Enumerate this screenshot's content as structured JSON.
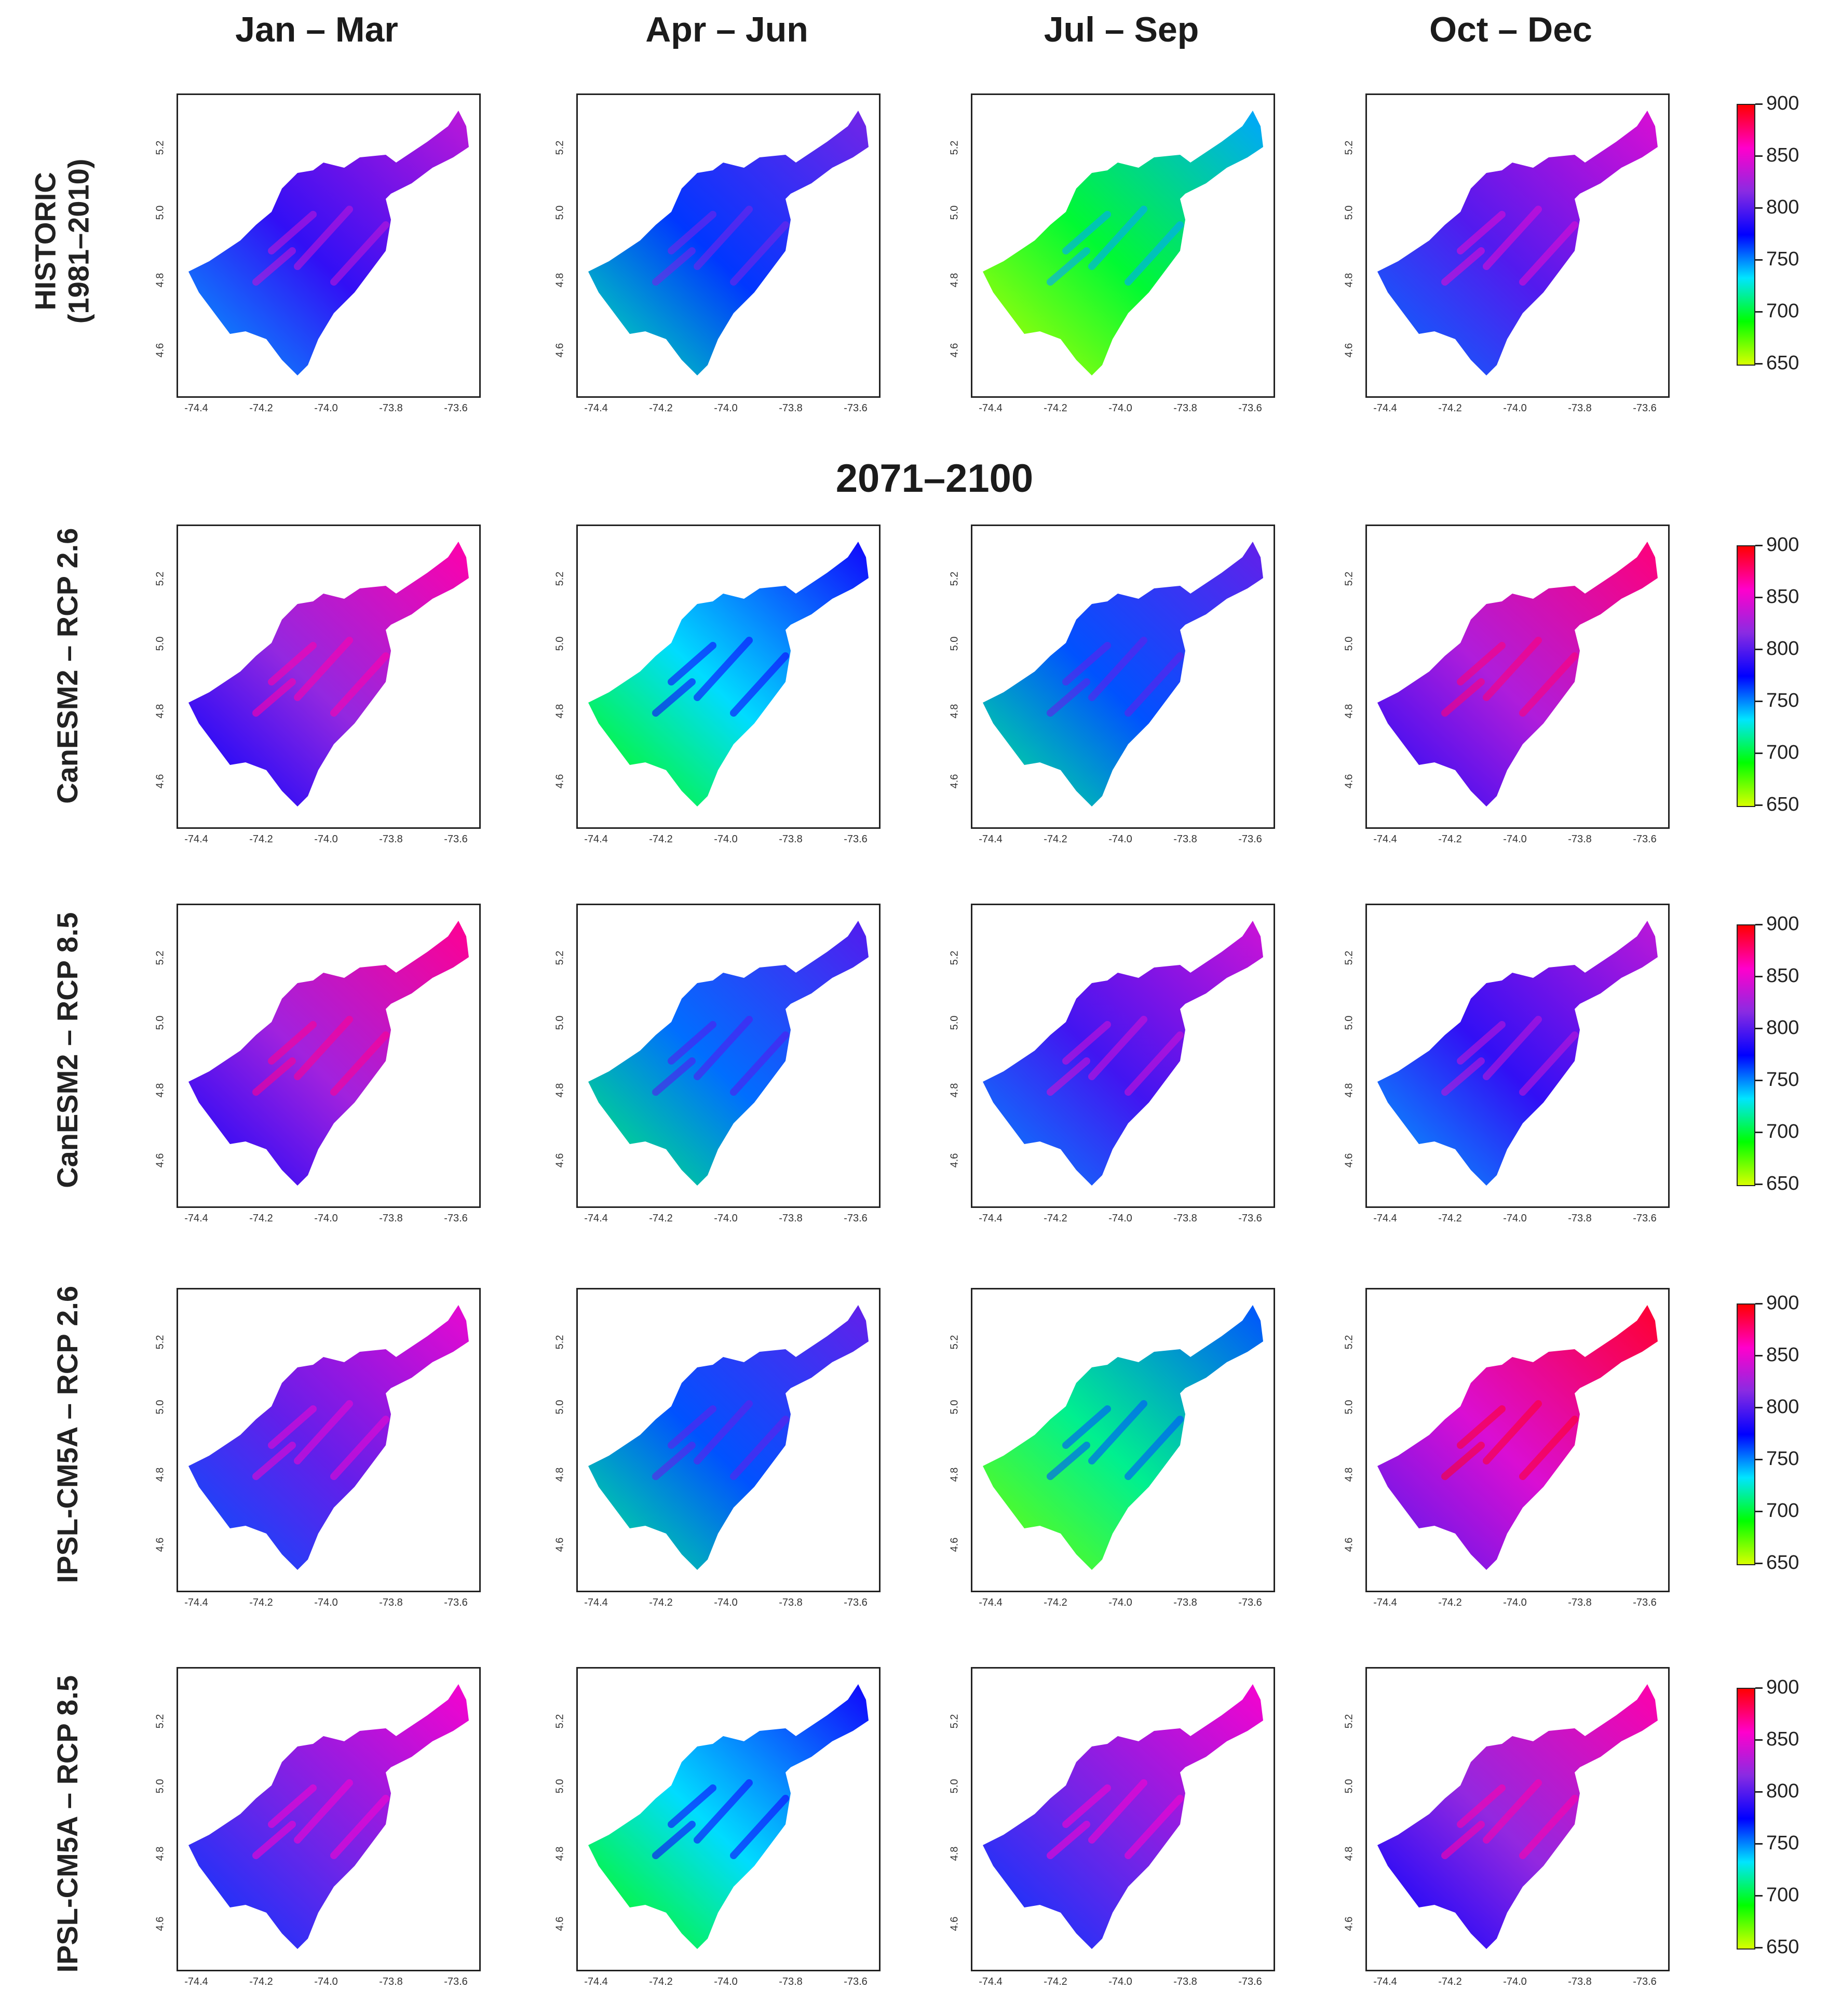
{
  "columns": [
    "Jan – Mar",
    "Apr – Jun",
    "Jul – Sep",
    "Oct – Dec"
  ],
  "period_title": "2071–2100",
  "rows": [
    {
      "label_line1": "HISTORIC",
      "label_line2": "(1981–2010)",
      "values": [
        790,
        765,
        700,
        800
      ]
    },
    {
      "label_line1": "CanESM2 – RCP 2.6",
      "label_line2": "",
      "values": [
        820,
        735,
        760,
        830
      ]
    },
    {
      "label_line1": "CanESM2 – RCP 8.5",
      "label_line2": "",
      "values": [
        825,
        755,
        795,
        790
      ]
    },
    {
      "label_line1": "IPSL-CM5A – RCP 2.6",
      "label_line2": "",
      "values": [
        805,
        760,
        715,
        845
      ]
    },
    {
      "label_line1": "IPSL-CM5A – RCP 8.5",
      "label_line2": "",
      "values": [
        810,
        735,
        810,
        820
      ]
    }
  ],
  "x_ticks": [
    "-74.4",
    "-74.2",
    "-74.0",
    "-73.8",
    "-73.6"
  ],
  "y_ticks": [
    "4.6",
    "4.8",
    "5.0",
    "5.2"
  ],
  "colorbar": {
    "ticks": [
      "900",
      "850",
      "800",
      "750",
      "700",
      "650"
    ],
    "min": 650,
    "max": 900,
    "colors": [
      "#ff0000",
      "#ff00cc",
      "#8a2be2",
      "#0000ff",
      "#00e5ff",
      "#00ff00",
      "#d8ff00"
    ]
  }
}
